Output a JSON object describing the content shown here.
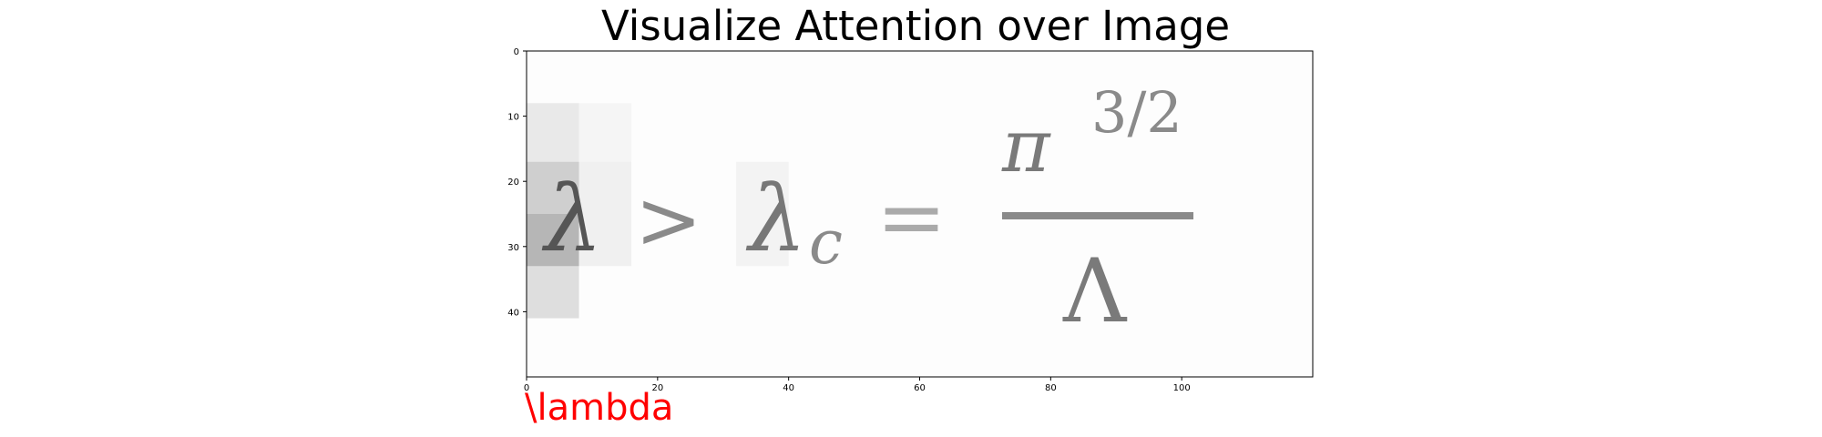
{
  "chart_data": {
    "type": "heatmap",
    "title": "Visualize Attention over Image",
    "xlabel": "",
    "ylabel": "",
    "xlim": [
      0,
      120
    ],
    "ylim": [
      50,
      0
    ],
    "x_ticks": [
      0,
      20,
      40,
      60,
      80,
      100
    ],
    "y_ticks": [
      0,
      10,
      20,
      30,
      40
    ],
    "grid": false,
    "image_content": {
      "formula_glyphs": [
        {
          "glyph": "λ",
          "note": "lambda"
        },
        {
          "glyph": ">",
          "note": "greater-than"
        },
        {
          "glyph": "λ",
          "note": "lambda"
        },
        {
          "glyph": "c",
          "note": "subscript c"
        },
        {
          "glyph": "=",
          "note": "equals"
        },
        {
          "glyph": "π",
          "note": "pi numerator"
        },
        {
          "glyph": "3/2",
          "note": "superscript exponent"
        },
        {
          "glyph": "Λ",
          "note": "capital lambda denominator"
        }
      ]
    },
    "attention_cells": [
      {
        "x0": 0,
        "x1": 8,
        "y0": 8,
        "y1": 17,
        "weight": 0.08
      },
      {
        "x0": 0,
        "x1": 8,
        "y0": 17,
        "y1": 25,
        "weight": 0.18
      },
      {
        "x0": 0,
        "x1": 8,
        "y0": 25,
        "y1": 33,
        "weight": 0.28
      },
      {
        "x0": 0,
        "x1": 8,
        "y0": 33,
        "y1": 41,
        "weight": 0.12
      },
      {
        "x0": 8,
        "x1": 16,
        "y0": 8,
        "y1": 17,
        "weight": 0.03
      },
      {
        "x0": 8,
        "x1": 16,
        "y0": 17,
        "y1": 33,
        "weight": 0.05
      },
      {
        "x0": 32,
        "x1": 40,
        "y0": 17,
        "y1": 33,
        "weight": 0.04
      }
    ],
    "caption": "\\lambda",
    "caption_color": "#ff0000"
  }
}
